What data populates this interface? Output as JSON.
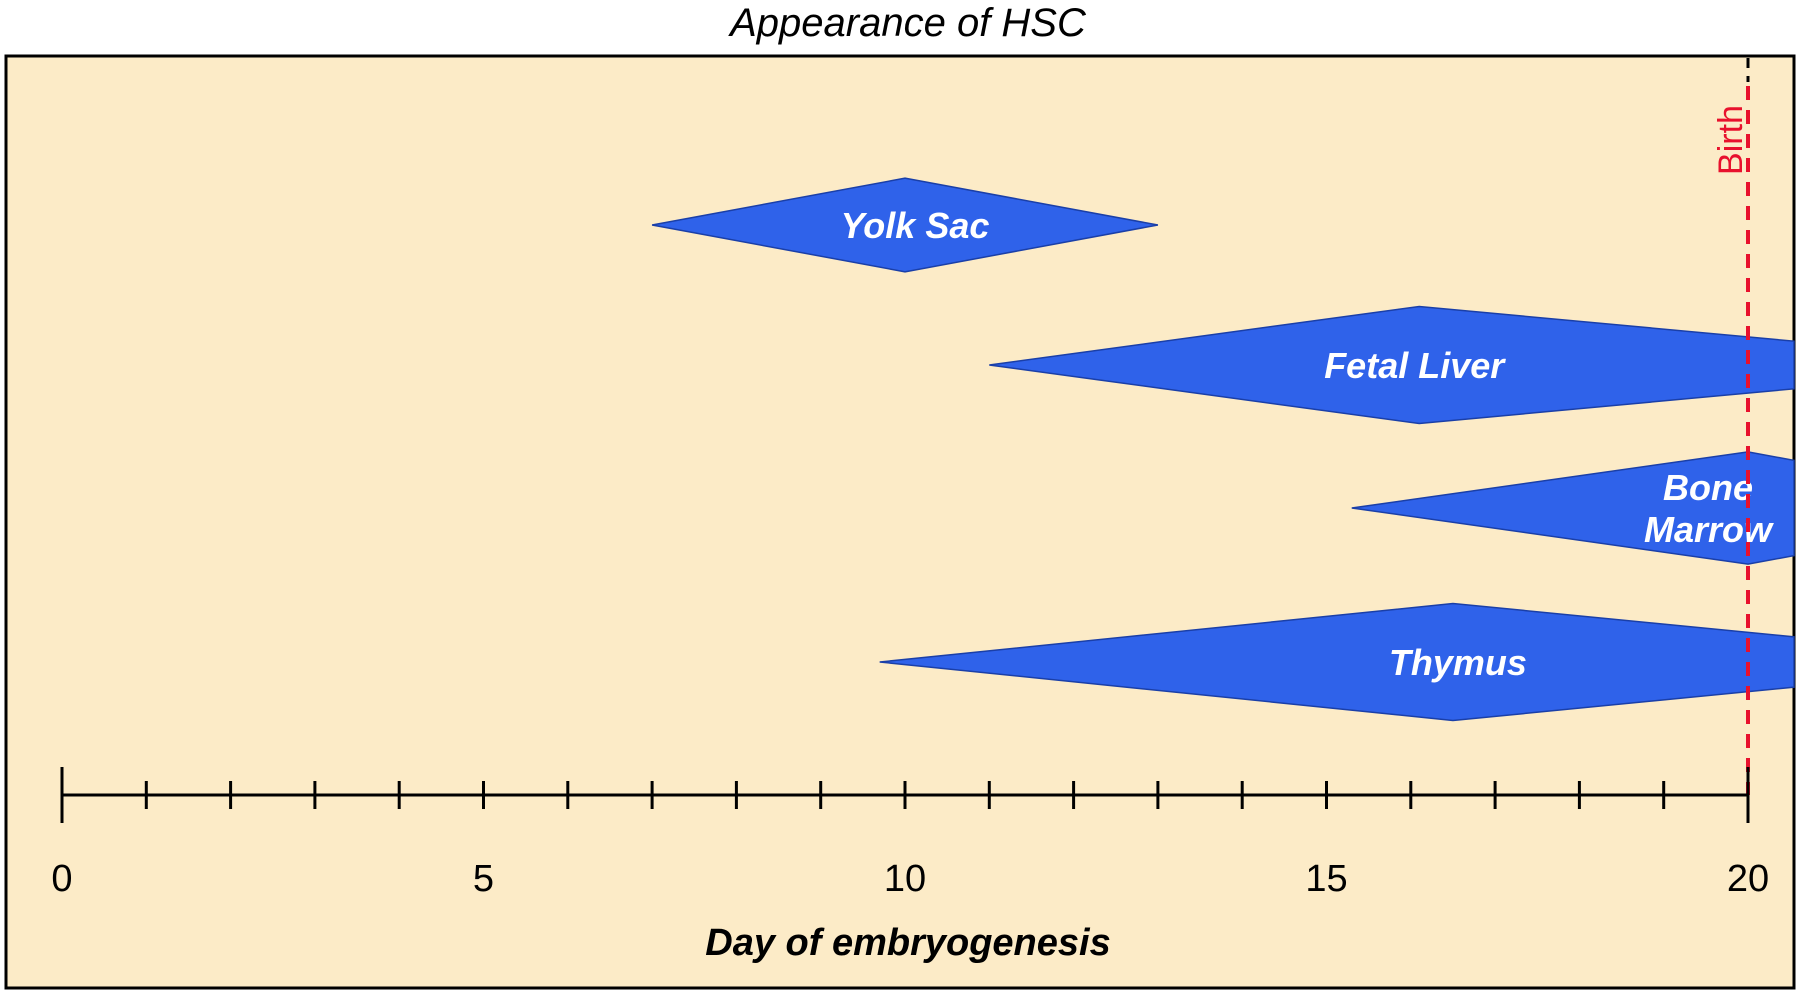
{
  "colors": {
    "background": "#fcebc7",
    "band_fill": "#2f62ea",
    "band_stroke": "#1a3fa8",
    "marker": "#e8112d",
    "axis": "#000000"
  },
  "chart_data": {
    "type": "timeline",
    "title": "Appearance of HSC",
    "xlabel": "Day of embryogenesis",
    "xlim": [
      0,
      20.6
    ],
    "major_ticks": [
      0,
      5,
      10,
      15,
      20
    ],
    "minor_tick_step": 1,
    "series": [
      {
        "name": "Yolk Sac",
        "label_lines": [
          "Yolk Sac"
        ],
        "start": 7.0,
        "peak": 10.0,
        "end": 13.0,
        "height": 1.0
      },
      {
        "name": "Fetal Liver",
        "label_lines": [
          "Fetal Liver"
        ],
        "start": 11.0,
        "peak": 16.1,
        "end": 20.6,
        "height": 1.25
      },
      {
        "name": "Bone Marrow",
        "label_lines": [
          "Bone",
          "Marrow"
        ],
        "start": 15.3,
        "peak": 20.0,
        "end": 20.6,
        "height": 1.2
      },
      {
        "name": "Thymus",
        "label_lines": [
          "Thymus"
        ],
        "start": 9.7,
        "peak": 16.5,
        "end": 20.6,
        "height": 1.25
      }
    ],
    "markers": [
      {
        "label": "Birth",
        "x": 20.0
      }
    ]
  }
}
